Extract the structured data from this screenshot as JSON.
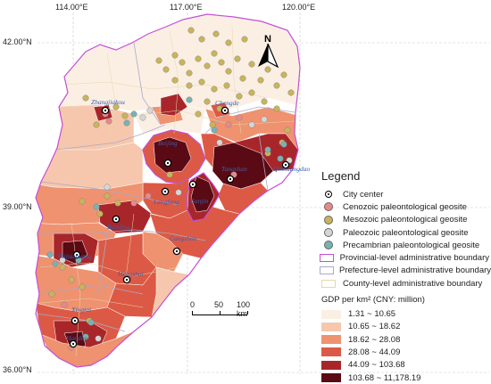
{
  "graticule": {
    "lon_labels": [
      "114.00°E",
      "117.00°E",
      "120.00°E"
    ],
    "lat_labels": [
      "42.00°N",
      "39.00°N",
      "36.00°N"
    ]
  },
  "north_arrow": {
    "label": "N",
    "icon": "north-arrow-icon"
  },
  "scale_bar": {
    "ticks": [
      "0",
      "50",
      "100 km"
    ]
  },
  "cities": [
    {
      "name": "Zhangjiakou",
      "level": 1
    },
    {
      "name": "Chengde",
      "level": 0
    },
    {
      "name": "Beijing",
      "level": 5
    },
    {
      "name": "Tangshan",
      "level": 5
    },
    {
      "name": "Qinhuangdao",
      "level": 2
    },
    {
      "name": "Langfang",
      "level": 4
    },
    {
      "name": "Tianjin",
      "level": 5
    },
    {
      "name": "Baoding",
      "level": 3
    },
    {
      "name": "Cangzhou",
      "level": 3
    },
    {
      "name": "Shijiazhuang",
      "level": 4
    },
    {
      "name": "Hengshui",
      "level": 3
    },
    {
      "name": "Xingtai",
      "level": 3
    },
    {
      "name": "Handan",
      "level": 4
    }
  ],
  "legend": {
    "title": "Legend",
    "items": [
      {
        "label": "City center",
        "kind": "city"
      },
      {
        "label": "Cenozoic paleontological geosite",
        "kind": "dot",
        "color": "#e58a8a"
      },
      {
        "label": "Mesozoic paleontological geosite",
        "kind": "dot",
        "color": "#c8b45c"
      },
      {
        "label": "Paleozoic paleontological geosite",
        "kind": "dot",
        "color": "#d6d6d6"
      },
      {
        "label": "Precambrian paleontological geosite",
        "kind": "dot",
        "color": "#79b2b2"
      },
      {
        "label": "Provincial-level administrative boundary",
        "kind": "line",
        "color": "#c44fd6"
      },
      {
        "label": "Prefecture-level administrative boundary",
        "kind": "line",
        "color": "#a9a9c9"
      },
      {
        "label": "County-level administrative boundary",
        "kind": "line",
        "color": "#e6d7a8"
      }
    ],
    "gdp_title": "GDP per km² (CNY: million)",
    "gdp_classes": [
      {
        "label": "1.31 ~ 10.65",
        "color": "#fbefe4"
      },
      {
        "label": "10.65 ~ 18.62",
        "color": "#f6c7ad"
      },
      {
        "label": "18.62 ~ 28.08",
        "color": "#ef9270"
      },
      {
        "label": "28.08 ~ 44.09",
        "color": "#dc5a45"
      },
      {
        "label": "44.09 ~ 103.68",
        "color": "#a8262a"
      },
      {
        "label": "103.68 ~ 11,178.19",
        "color": "#5a0a14"
      }
    ]
  }
}
